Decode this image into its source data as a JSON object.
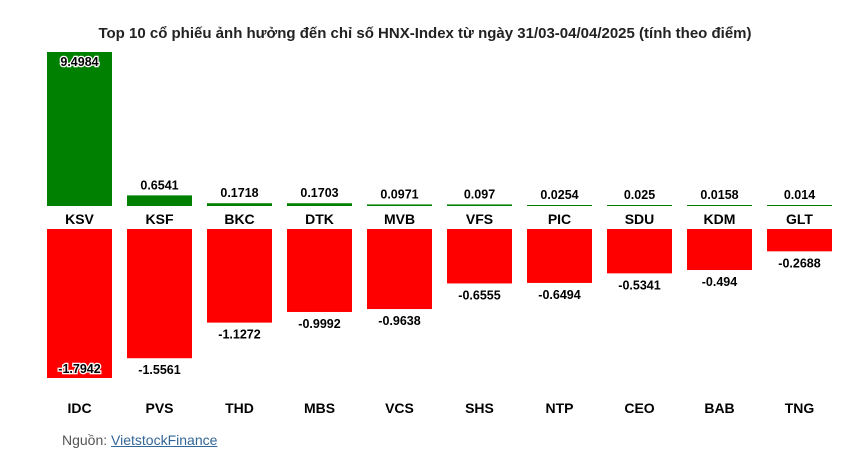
{
  "chart_data": {
    "type": "bar",
    "title": "Top 10 cổ phiếu ảnh hưởng đến chỉ số HNX-Index từ ngày 31/03-04/04/2025 (tính theo điểm)",
    "series": [
      {
        "values": [
          9.4984,
          0.6541,
          0.1718,
          0.1703,
          0.0971,
          0.097,
          0.0254,
          0.025,
          0.0158,
          0.014
        ],
        "labels": [
          "9.4984",
          "0.6541",
          "0.1718",
          "0.1703",
          "0.0971",
          "0.097",
          "0.0254",
          "0.025",
          "0.0158",
          "0.014"
        ],
        "categories": [
          "KSV",
          "KSF",
          "BKC",
          "DTK",
          "MVB",
          "VFS",
          "PIC",
          "SDU",
          "KDM",
          "GLT"
        ],
        "color": "#008000"
      },
      {
        "values": [
          -1.7942,
          -1.5561,
          -1.1272,
          -0.9992,
          -0.9638,
          -0.6555,
          -0.6494,
          -0.5341,
          -0.494,
          -0.2688
        ],
        "labels": [
          "-1.7942",
          "-1.5561",
          "-1.1272",
          "-0.9992",
          "-0.9638",
          "-0.6555",
          "-0.6494",
          "-0.5341",
          "-0.494",
          "-0.2688"
        ],
        "categories": [
          "IDC",
          "PVS",
          "THD",
          "MBS",
          "VCS",
          "SHS",
          "NTP",
          "CEO",
          "BAB",
          "TNG"
        ],
        "color": "#ff0000"
      }
    ],
    "grid": false,
    "legend": "none"
  },
  "source": {
    "label": "Nguồn: ",
    "link": "VietstockFinance"
  }
}
